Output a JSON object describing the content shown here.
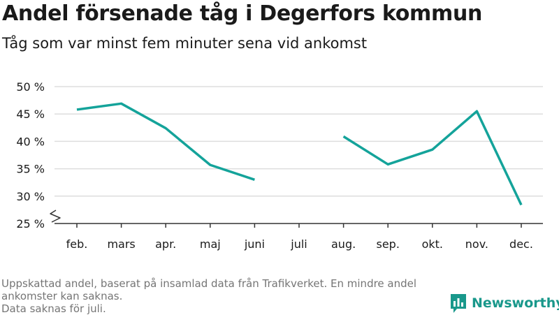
{
  "title": "Andel försenade tåg i Degerfors kommun",
  "subtitle": "Tåg som var minst fem minuter sena vid ankomst",
  "notes": [
    "Uppskattad andel, baserat på insamlad data från Trafikverket. En mindre andel ankomster kan saknas.",
    "Data saknas för juli."
  ],
  "brand": "Newsworthy",
  "colors": {
    "line": "#14a39a",
    "grid": "#dddddd",
    "axis": "#333333",
    "brand": "#19988b"
  },
  "chart_data": {
    "type": "line",
    "categories": [
      "feb.",
      "mars",
      "apr.",
      "maj",
      "juni",
      "juli",
      "aug.",
      "sep.",
      "okt.",
      "nov.",
      "dec."
    ],
    "series": [
      {
        "values": [
          45.8,
          46.9,
          42.4,
          35.7,
          33.0,
          null,
          40.9,
          35.8,
          38.5,
          45.5,
          28.4
        ]
      }
    ],
    "y_ticks": [
      25,
      30,
      35,
      40,
      45,
      50
    ],
    "y_tick_labels": [
      "25 %",
      "30 %",
      "35 %",
      "40 %",
      "45 %",
      "50 %"
    ],
    "ylim": [
      25,
      50
    ],
    "axis_break": true,
    "grid": true,
    "xlabel": "",
    "ylabel": ""
  }
}
